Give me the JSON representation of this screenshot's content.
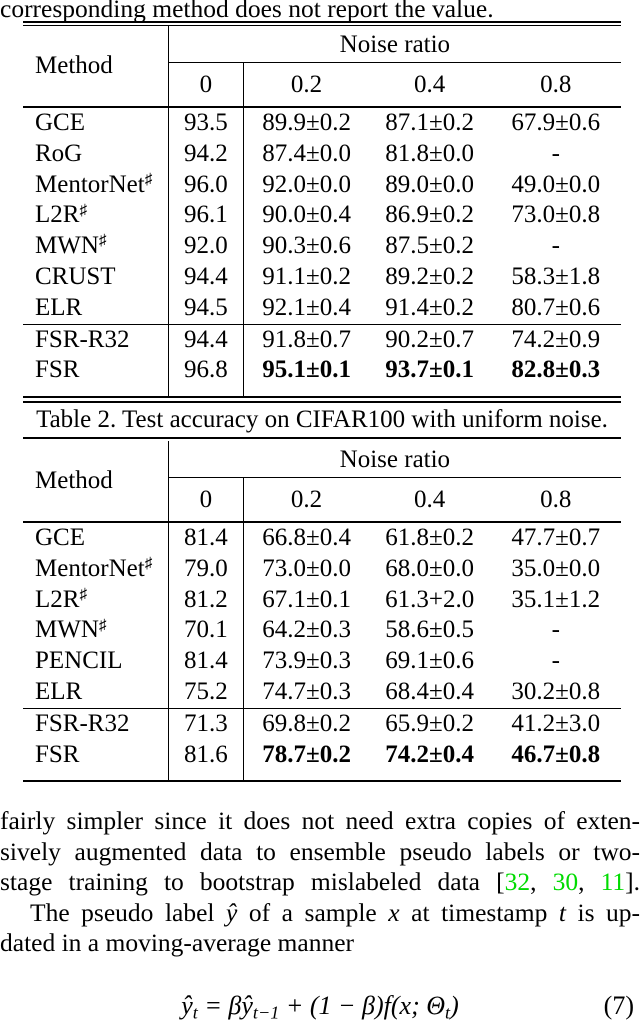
{
  "page": {
    "intro_text": "corresponding method does not report the value.",
    "table2_caption": "Table 2. Test accuracy on CIFAR100 with uniform noise."
  },
  "table_header": {
    "method_label": "Method",
    "group_label": "Noise ratio",
    "columns": [
      "0",
      "0.2",
      "0.4",
      "0.8"
    ]
  },
  "cifar10_table": {
    "main_rows": [
      {
        "m": "GCE",
        "v": [
          "93.5",
          "89.9±0.2",
          "87.1±0.2",
          "67.9±0.6"
        ]
      },
      {
        "m": "RoG",
        "v": [
          "94.2",
          "87.4±0.0",
          "81.8±0.0",
          "-"
        ]
      },
      {
        "m": "MentorNet",
        "sharp": true,
        "v": [
          "96.0",
          "92.0±0.0",
          "89.0±0.0",
          "49.0±0.0"
        ]
      },
      {
        "m": "L2R",
        "sharp": true,
        "v": [
          "96.1",
          "90.0±0.4",
          "86.9±0.2",
          "73.0±0.8"
        ]
      },
      {
        "m": "MWN",
        "sharp": true,
        "v": [
          "92.0",
          "90.3±0.6",
          "87.5±0.2",
          "-"
        ]
      },
      {
        "m": "CRUST",
        "v": [
          "94.4",
          "91.1±0.2",
          "89.2±0.2",
          "58.3±1.8"
        ]
      },
      {
        "m": "ELR",
        "v": [
          "94.5",
          "92.1±0.4",
          "91.4±0.2",
          "80.7±0.6"
        ]
      }
    ],
    "fsr_rows": [
      {
        "m": "FSR-R32",
        "v": [
          "94.4",
          "91.8±0.7",
          "90.2±0.7",
          "74.2±0.9"
        ]
      },
      {
        "m": "FSR",
        "v": [
          "96.8",
          "95.1±0.1",
          "93.7±0.1",
          "82.8±0.3"
        ],
        "b": [
          1,
          2,
          3
        ]
      }
    ]
  },
  "cifar100_table": {
    "main_rows": [
      {
        "m": "GCE",
        "v": [
          "81.4",
          "66.8±0.4",
          "61.8±0.2",
          "47.7±0.7"
        ]
      },
      {
        "m": "MentorNet",
        "sharp": true,
        "v": [
          "79.0",
          "73.0±0.0",
          "68.0±0.0",
          "35.0±0.0"
        ]
      },
      {
        "m": "L2R",
        "sharp": true,
        "v": [
          "81.2",
          "67.1±0.1",
          "61.3+2.0",
          "35.1±1.2"
        ]
      },
      {
        "m": "MWN",
        "sharp": true,
        "v": [
          "70.1",
          "64.2±0.3",
          "58.6±0.5",
          "-"
        ]
      },
      {
        "m": "PENCIL",
        "v": [
          "81.4",
          "73.9±0.3",
          "69.1±0.6",
          "-"
        ]
      },
      {
        "m": "ELR",
        "v": [
          "75.2",
          "74.7±0.3",
          "68.4±0.4",
          "30.2±0.8"
        ]
      }
    ],
    "fsr_rows": [
      {
        "m": "FSR-R32",
        "v": [
          "71.3",
          "69.8±0.2",
          "65.9±0.2",
          "41.2±3.0"
        ]
      },
      {
        "m": "FSR",
        "v": [
          "81.6",
          "78.7±0.2",
          "74.2±0.4",
          "46.7±0.8"
        ],
        "b": [
          1,
          2,
          3
        ]
      }
    ]
  },
  "body_text": {
    "lines": [
      {
        "segments": [
          {
            "t": "fairly simpler since it does not need extra copies of exten-"
          }
        ]
      },
      {
        "segments": [
          {
            "t": "sively augmented data to ensemble pseudo labels or two-"
          }
        ]
      },
      {
        "segments": [
          {
            "t": "stage training to bootstrap mislabeled data ["
          },
          {
            "t": "32",
            "c": "cite"
          },
          {
            "t": ", "
          },
          {
            "t": "30",
            "c": "cite"
          },
          {
            "t": ", "
          },
          {
            "t": "11",
            "c": "cite"
          },
          {
            "t": "]."
          }
        ]
      },
      {
        "segments": [
          {
            "t": "The pseudo label "
          },
          {
            "t": "ŷ",
            "c": "math"
          },
          {
            "t": " of a sample "
          },
          {
            "t": "x",
            "c": "math"
          },
          {
            "t": " at timestamp "
          },
          {
            "t": "t",
            "c": "math"
          },
          {
            "t": " is up-"
          }
        ]
      },
      {
        "segments": [
          {
            "t": "dated in a moving-average manner"
          }
        ]
      }
    ]
  },
  "equation": {
    "segments": [
      {
        "t": "ŷ",
        "c": "math"
      },
      {
        "t": "t",
        "c": "sub"
      },
      {
        "t": " = βŷ",
        "c": "math"
      },
      {
        "t": "t−1",
        "c": "sub"
      },
      {
        "t": " + (1 − β)f(x; Θ",
        "c": "math"
      },
      {
        "t": "t",
        "c": "sub"
      },
      {
        "t": ")",
        "c": "math"
      }
    ],
    "number": "(7)"
  },
  "colors": {
    "citation_green": "#00DB00"
  }
}
